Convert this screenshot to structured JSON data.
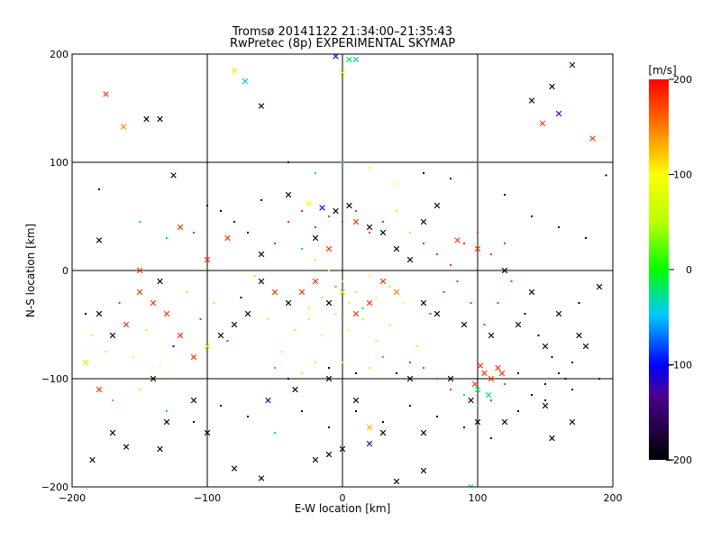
{
  "chart_data": {
    "type": "scatter",
    "title": "Tromsø 20141122 21:34:00–21:35:43",
    "subtitle": "RwPretec (8p) EXPERIMENTAL SKYMAP",
    "xlabel": "E-W location [km]",
    "ylabel": "N-S location [km]",
    "xlim": [
      -200,
      200
    ],
    "ylim": [
      -200,
      200
    ],
    "xticks": [
      -200,
      -100,
      0,
      100,
      200
    ],
    "yticks": [
      -200,
      -100,
      0,
      100,
      200
    ],
    "grid": true,
    "colorbar": {
      "label": "[m/s]",
      "range": [
        -200,
        200
      ],
      "ticks": [
        -200,
        -100,
        0,
        100,
        200
      ],
      "colors": [
        "#000000",
        "#0000ff",
        "#00ffff",
        "#00ff00",
        "#ffff00",
        "#ff8000",
        "#ff0000"
      ]
    },
    "markers": [
      "cross",
      "dot"
    ],
    "series": [
      {
        "marker": "cross",
        "points": [
          [
            -175,
            163,
            180
          ],
          [
            -162,
            133,
            150
          ],
          [
            -145,
            140,
            -200
          ],
          [
            -135,
            140,
            -200
          ],
          [
            -125,
            88,
            -200
          ],
          [
            -80,
            185,
            110
          ],
          [
            -72,
            175,
            -50
          ],
          [
            -60,
            152,
            -200
          ],
          [
            -5,
            198,
            -100
          ],
          [
            5,
            195,
            -20
          ],
          [
            0,
            183,
            60
          ],
          [
            10,
            195,
            -40
          ],
          [
            140,
            157,
            -200
          ],
          [
            148,
            136,
            180
          ],
          [
            155,
            170,
            -200
          ],
          [
            160,
            145,
            -120
          ],
          [
            170,
            190,
            -160
          ],
          [
            185,
            122,
            180
          ],
          [
            -185,
            -175,
            -200
          ],
          [
            -170,
            -150,
            -200
          ],
          [
            -160,
            -163,
            -200
          ],
          [
            -135,
            -165,
            -200
          ],
          [
            -130,
            -140,
            -200
          ],
          [
            -80,
            -183,
            -200
          ],
          [
            -60,
            -192,
            -200
          ],
          [
            -20,
            -175,
            -200
          ],
          [
            -10,
            -170,
            -200
          ],
          [
            0,
            -165,
            -200
          ],
          [
            20,
            -160,
            -120
          ],
          [
            40,
            -195,
            -200
          ],
          [
            60,
            -185,
            -200
          ],
          [
            95,
            -200,
            -20
          ],
          [
            20,
            -145,
            130
          ],
          [
            -55,
            -120,
            -130
          ],
          [
            -35,
            -110,
            -200
          ],
          [
            10,
            -120,
            -200
          ],
          [
            30,
            -150,
            -200
          ],
          [
            60,
            -150,
            -200
          ],
          [
            100,
            -140,
            -200
          ],
          [
            120,
            -140,
            -200
          ],
          [
            150,
            -125,
            -200
          ],
          [
            155,
            -155,
            -200
          ],
          [
            170,
            -140,
            -200
          ],
          [
            -10,
            -100,
            -200
          ],
          [
            50,
            -100,
            -200
          ],
          [
            80,
            -100,
            -200
          ],
          [
            -100,
            -150,
            -200
          ],
          [
            -110,
            -120,
            -200
          ],
          [
            -140,
            -100,
            -200
          ],
          [
            -180,
            -110,
            180
          ],
          [
            -190,
            -85,
            60
          ],
          [
            -180,
            28,
            -200
          ],
          [
            -150,
            0,
            180
          ],
          [
            -135,
            -10,
            -200
          ],
          [
            -120,
            40,
            180
          ],
          [
            -100,
            10,
            180
          ],
          [
            -85,
            30,
            180
          ],
          [
            -60,
            15,
            -200
          ],
          [
            -40,
            70,
            -200
          ],
          [
            -25,
            62,
            100
          ],
          [
            -15,
            58,
            -100
          ],
          [
            -5,
            55,
            -200
          ],
          [
            5,
            60,
            -200
          ],
          [
            10,
            45,
            180
          ],
          [
            20,
            40,
            -200
          ],
          [
            -20,
            30,
            -200
          ],
          [
            -10,
            20,
            180
          ],
          [
            30,
            35,
            -200
          ],
          [
            40,
            20,
            -200
          ],
          [
            50,
            10,
            -200
          ],
          [
            60,
            45,
            -200
          ],
          [
            70,
            60,
            -200
          ],
          [
            85,
            28,
            180
          ],
          [
            100,
            20,
            180
          ],
          [
            120,
            0,
            -200
          ],
          [
            140,
            -20,
            -200
          ],
          [
            160,
            -40,
            -200
          ],
          [
            175,
            -60,
            -200
          ],
          [
            190,
            -15,
            -200
          ],
          [
            180,
            -70,
            -200
          ],
          [
            150,
            -70,
            -200
          ],
          [
            130,
            -50,
            -200
          ],
          [
            110,
            -60,
            -200
          ],
          [
            90,
            -50,
            -200
          ],
          [
            70,
            -40,
            -200
          ],
          [
            60,
            -30,
            -200
          ],
          [
            40,
            -20,
            150
          ],
          [
            30,
            -10,
            180
          ],
          [
            20,
            -30,
            180
          ],
          [
            10,
            -40,
            180
          ],
          [
            0,
            -20,
            60
          ],
          [
            -10,
            -30,
            -200
          ],
          [
            -20,
            -10,
            180
          ],
          [
            -30,
            -20,
            180
          ],
          [
            -40,
            -30,
            -200
          ],
          [
            -50,
            -20,
            180
          ],
          [
            -60,
            -10,
            -200
          ],
          [
            -70,
            -40,
            -200
          ],
          [
            -80,
            -50,
            -200
          ],
          [
            -90,
            -60,
            -200
          ],
          [
            -100,
            -70,
            60
          ],
          [
            -110,
            -80,
            180
          ],
          [
            -120,
            -60,
            180
          ],
          [
            -130,
            -40,
            180
          ],
          [
            -140,
            -30,
            180
          ],
          [
            -150,
            -20,
            180
          ],
          [
            -160,
            -50,
            180
          ],
          [
            -170,
            -60,
            -200
          ],
          [
            -180,
            -40,
            -200
          ],
          [
            105,
            -95,
            180
          ],
          [
            110,
            -100,
            180
          ],
          [
            115,
            -90,
            180
          ],
          [
            100,
            -110,
            -20
          ],
          [
            108,
            -115,
            -20
          ],
          [
            98,
            -105,
            180
          ],
          [
            118,
            -95,
            180
          ],
          [
            102,
            -88,
            180
          ],
          [
            95,
            -120,
            -200
          ]
        ]
      },
      {
        "marker": "dot",
        "points": [
          [
            -190,
            -40,
            -200
          ],
          [
            -185,
            -60,
            60
          ],
          [
            -175,
            -75,
            60
          ],
          [
            -165,
            -30,
            180
          ],
          [
            -155,
            -80,
            100
          ],
          [
            -145,
            -55,
            60
          ],
          [
            -135,
            -90,
            100
          ],
          [
            -125,
            -70,
            -100
          ],
          [
            -115,
            -20,
            60
          ],
          [
            -105,
            -45,
            180
          ],
          [
            -95,
            -30,
            60
          ],
          [
            -85,
            -65,
            180
          ],
          [
            -75,
            -25,
            -200
          ],
          [
            -65,
            -5,
            60
          ],
          [
            -55,
            -45,
            60
          ],
          [
            -45,
            -75,
            60
          ],
          [
            -35,
            -55,
            60
          ],
          [
            -25,
            -35,
            60
          ],
          [
            -15,
            -60,
            100
          ],
          [
            -5,
            -40,
            60
          ],
          [
            5,
            -55,
            100
          ],
          [
            15,
            -45,
            60
          ],
          [
            25,
            -65,
            60
          ],
          [
            35,
            -50,
            60
          ],
          [
            45,
            -30,
            100
          ],
          [
            55,
            -70,
            60
          ],
          [
            65,
            -40,
            180
          ],
          [
            75,
            -20,
            180
          ],
          [
            85,
            -10,
            180
          ],
          [
            95,
            -30,
            180
          ],
          [
            105,
            -50,
            180
          ],
          [
            115,
            -30,
            180
          ],
          [
            125,
            -10,
            180
          ],
          [
            135,
            -40,
            -200
          ],
          [
            145,
            -60,
            -200
          ],
          [
            155,
            -80,
            -200
          ],
          [
            165,
            -100,
            -200
          ],
          [
            175,
            -30,
            -200
          ],
          [
            -90,
            55,
            -200
          ],
          [
            -80,
            45,
            -200
          ],
          [
            -70,
            35,
            -200
          ],
          [
            -60,
            65,
            -200
          ],
          [
            -50,
            25,
            180
          ],
          [
            -40,
            45,
            180
          ],
          [
            -30,
            55,
            180
          ],
          [
            -20,
            40,
            180
          ],
          [
            -10,
            50,
            180
          ],
          [
            0,
            45,
            180
          ],
          [
            10,
            55,
            180
          ],
          [
            20,
            35,
            180
          ],
          [
            30,
            45,
            180
          ],
          [
            40,
            55,
            60
          ],
          [
            50,
            35,
            60
          ],
          [
            60,
            25,
            180
          ],
          [
            70,
            15,
            180
          ],
          [
            80,
            5,
            180
          ],
          [
            90,
            25,
            180
          ],
          [
            100,
            35,
            180
          ],
          [
            110,
            15,
            180
          ],
          [
            120,
            25,
            180
          ],
          [
            -30,
            20,
            -20
          ],
          [
            -20,
            10,
            60
          ],
          [
            -10,
            0,
            60
          ],
          [
            0,
            -10,
            60
          ],
          [
            10,
            -20,
            60
          ],
          [
            20,
            -5,
            100
          ],
          [
            -5,
            -15,
            -20
          ],
          [
            5,
            -30,
            60
          ],
          [
            -15,
            -25,
            60
          ],
          [
            -25,
            -45,
            60
          ],
          [
            15,
            -35,
            -20
          ],
          [
            25,
            -25,
            100
          ],
          [
            35,
            -15,
            60
          ],
          [
            -50,
            -90,
            -20
          ],
          [
            -40,
            -100,
            -200
          ],
          [
            -30,
            -95,
            60
          ],
          [
            -20,
            -85,
            60
          ],
          [
            -10,
            -90,
            -200
          ],
          [
            0,
            -85,
            60
          ],
          [
            10,
            -95,
            -200
          ],
          [
            20,
            -90,
            60
          ],
          [
            30,
            -80,
            -20
          ],
          [
            40,
            -95,
            -200
          ],
          [
            50,
            -85,
            180
          ],
          [
            60,
            -90,
            180
          ],
          [
            70,
            -100,
            180
          ],
          [
            80,
            -110,
            180
          ],
          [
            90,
            -115,
            -20
          ],
          [
            100,
            -125,
            -20
          ],
          [
            110,
            -120,
            180
          ],
          [
            120,
            -105,
            180
          ],
          [
            130,
            -95,
            -200
          ],
          [
            140,
            -115,
            -200
          ],
          [
            150,
            -105,
            -200
          ],
          [
            160,
            -95,
            -200
          ],
          [
            170,
            -85,
            -200
          ],
          [
            -180,
            75,
            -200
          ],
          [
            -150,
            45,
            -20
          ],
          [
            -130,
            30,
            -20
          ],
          [
            -110,
            35,
            180
          ],
          [
            -100,
            60,
            -200
          ],
          [
            -40,
            100,
            -200
          ],
          [
            -20,
            90,
            -20
          ],
          [
            0,
            100,
            -20
          ],
          [
            20,
            95,
            100
          ],
          [
            40,
            80,
            100
          ],
          [
            60,
            90,
            -200
          ],
          [
            80,
            85,
            -200
          ],
          [
            100,
            100,
            180
          ],
          [
            120,
            70,
            -200
          ],
          [
            140,
            50,
            -200
          ],
          [
            160,
            40,
            -200
          ],
          [
            180,
            30,
            -200
          ],
          [
            195,
            88,
            -200
          ],
          [
            -170,
            -120,
            -20
          ],
          [
            -150,
            -110,
            60
          ],
          [
            -130,
            -130,
            -20
          ],
          [
            -110,
            -140,
            -200
          ],
          [
            -90,
            -125,
            -200
          ],
          [
            -70,
            -135,
            -200
          ],
          [
            -50,
            -150,
            -20
          ],
          [
            -30,
            -130,
            -200
          ],
          [
            -10,
            -145,
            -200
          ],
          [
            10,
            -130,
            -200
          ],
          [
            30,
            -140,
            -200
          ],
          [
            50,
            -125,
            -200
          ],
          [
            70,
            -135,
            -200
          ],
          [
            90,
            -145,
            -200
          ],
          [
            110,
            -155,
            -200
          ],
          [
            130,
            -130,
            -200
          ],
          [
            150,
            -120,
            -200
          ],
          [
            170,
            -110,
            -200
          ],
          [
            190,
            -100,
            -200
          ]
        ]
      }
    ]
  }
}
